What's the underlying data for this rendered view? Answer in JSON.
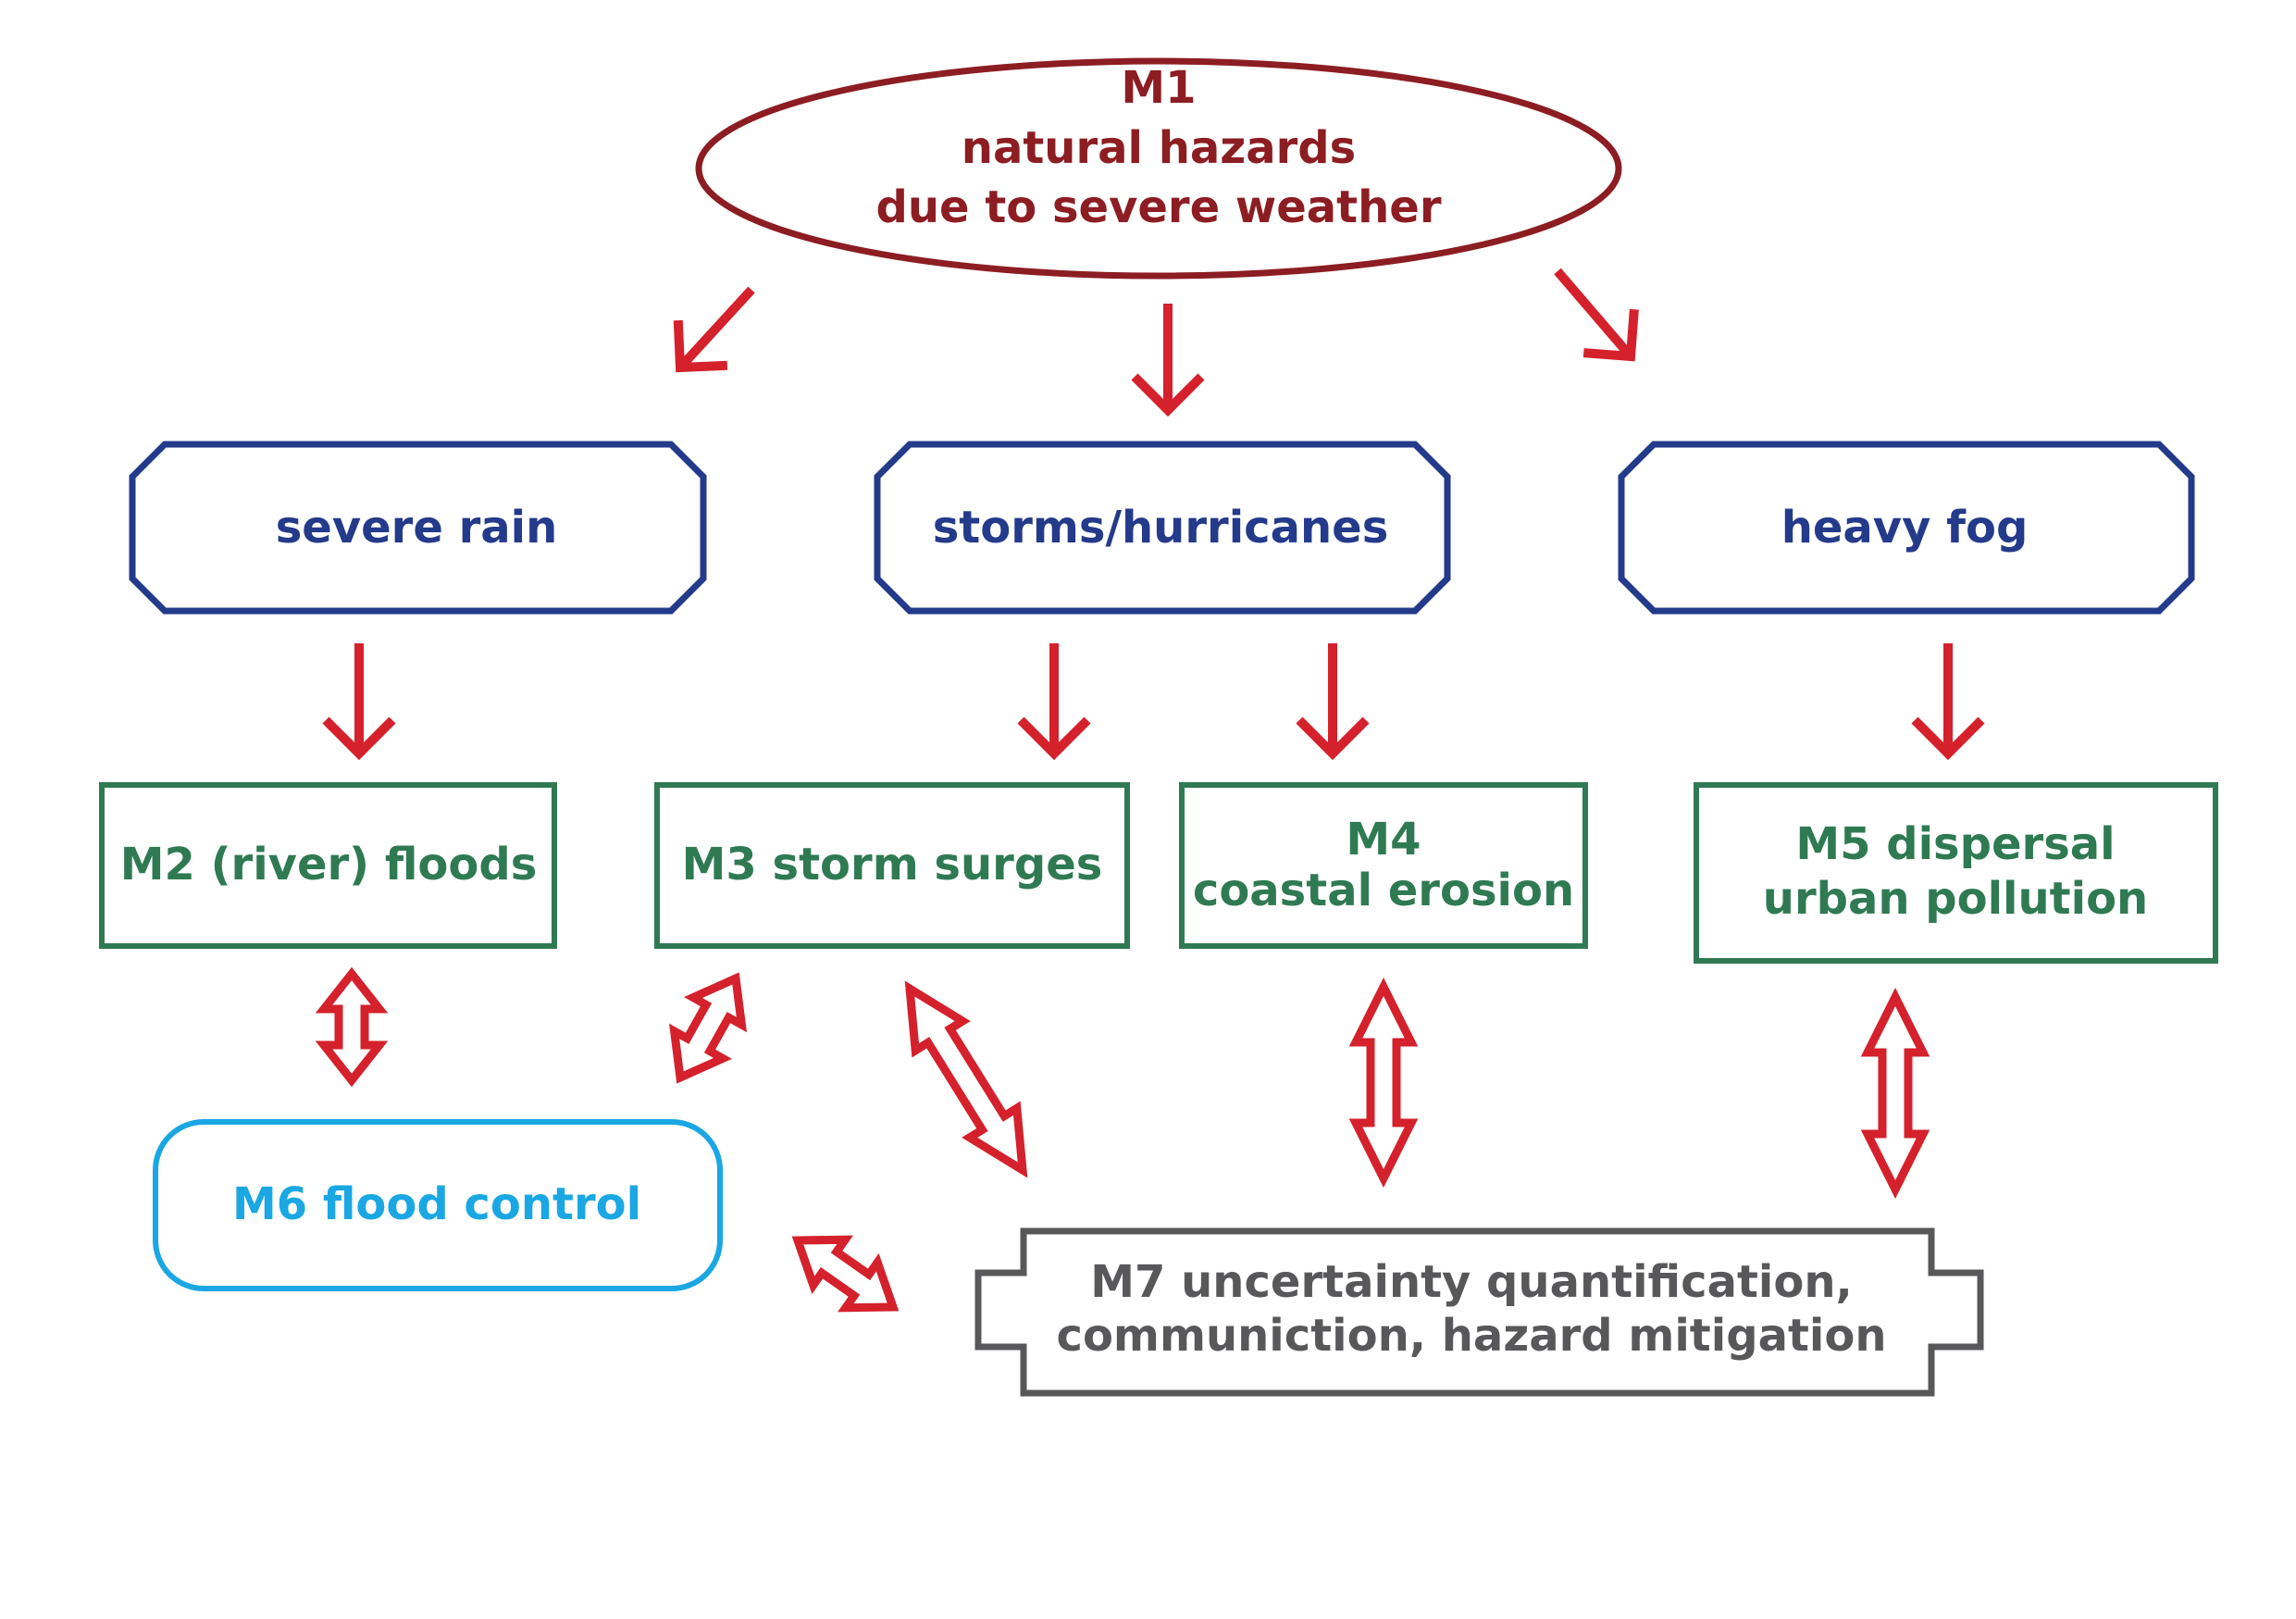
{
  "colors": {
    "m1": "#8c1d22",
    "hazard": "#243a8a",
    "model": "#2f7a53",
    "control": "#1aa7e3",
    "uq": "#58585a",
    "arrow": "#d4212c"
  },
  "nodes": {
    "m1": {
      "lines": [
        "M1",
        "natural hazards",
        "due to severe weather"
      ]
    },
    "severe_rain": {
      "lines": [
        "severe rain"
      ]
    },
    "storms": {
      "lines": [
        "storms/hurricanes"
      ]
    },
    "fog": {
      "lines": [
        "heavy fog"
      ]
    },
    "m2": {
      "lines": [
        "M2 (river) floods"
      ]
    },
    "m3": {
      "lines": [
        "M3 storm surges"
      ]
    },
    "m4": {
      "lines": [
        "M4",
        "coastal erosion"
      ]
    },
    "m5": {
      "lines": [
        "M5 dispersal",
        "urban pollution"
      ]
    },
    "m6": {
      "lines": [
        "M6 flood control"
      ]
    },
    "m7": {
      "lines": [
        "M7 uncertainty quantification,",
        "communiction, hazard mitigation"
      ]
    }
  },
  "edges": [
    {
      "from": "m1",
      "to": "severe_rain",
      "kind": "single"
    },
    {
      "from": "m1",
      "to": "storms",
      "kind": "single"
    },
    {
      "from": "m1",
      "to": "fog",
      "kind": "single"
    },
    {
      "from": "severe_rain",
      "to": "m2",
      "kind": "single"
    },
    {
      "from": "storms",
      "to": "m3",
      "kind": "single"
    },
    {
      "from": "storms",
      "to": "m4",
      "kind": "single"
    },
    {
      "from": "fog",
      "to": "m5",
      "kind": "single"
    },
    {
      "from": "m2",
      "to": "m6",
      "kind": "double"
    },
    {
      "from": "m3",
      "to": "m6",
      "kind": "double"
    },
    {
      "from": "m3",
      "to": "m7",
      "kind": "double"
    },
    {
      "from": "m4",
      "to": "m7",
      "kind": "double"
    },
    {
      "from": "m5",
      "to": "m7",
      "kind": "double"
    },
    {
      "from": "m6",
      "to": "m7",
      "kind": "double"
    }
  ]
}
